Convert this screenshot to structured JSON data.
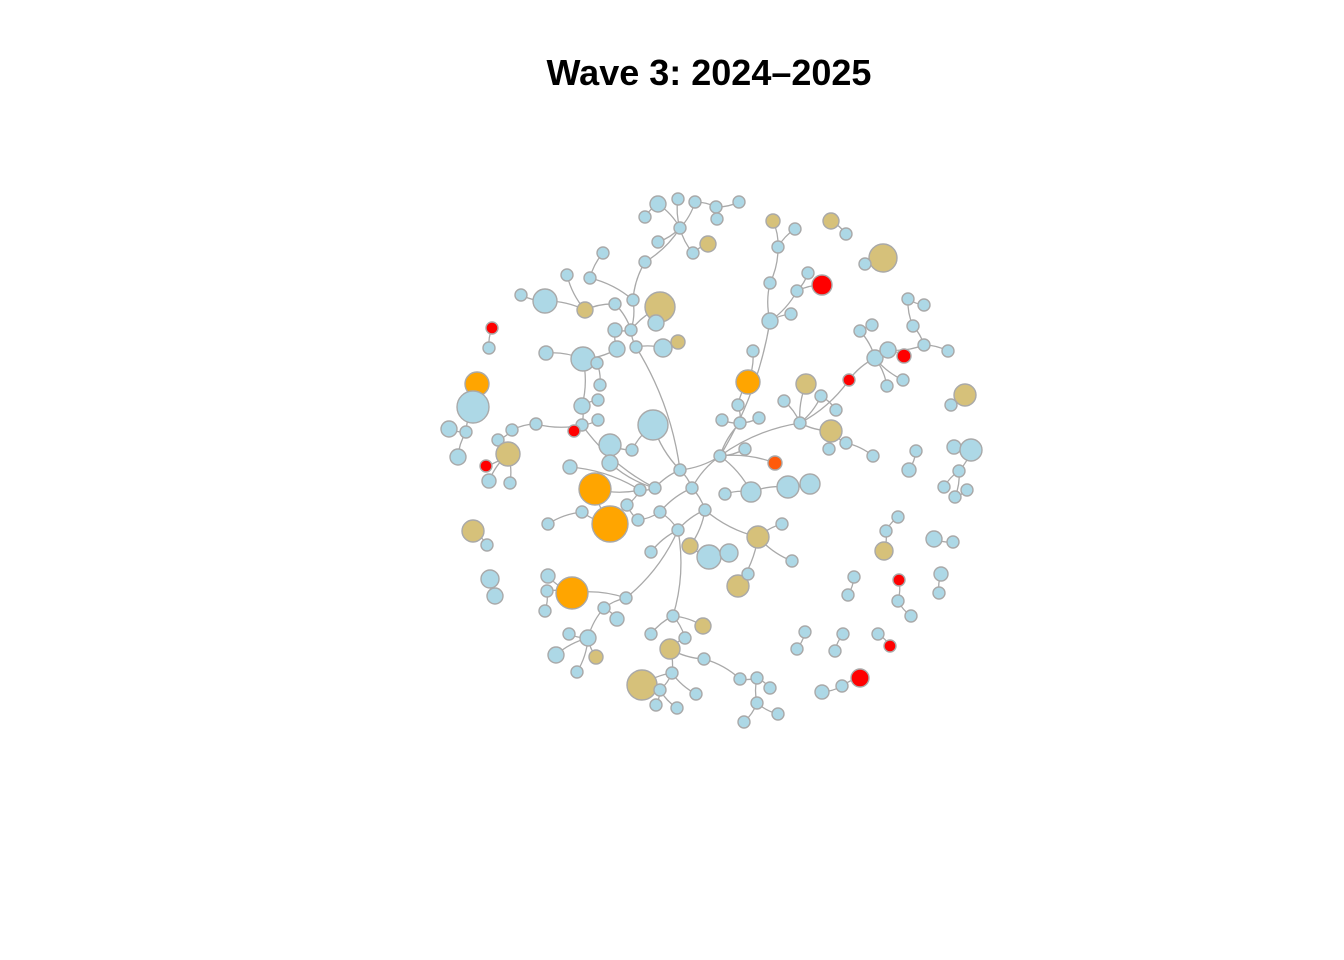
{
  "title": "Wave 3: 2024–2025",
  "colors": {
    "default": "#add8e6",
    "tan": "#d6c17a",
    "orange": "#ffa500",
    "red": "#ff0000",
    "dark_orange": "#ff5a0a",
    "edge": "#a9a9a9",
    "stroke": "#a9a9a9"
  }
}
